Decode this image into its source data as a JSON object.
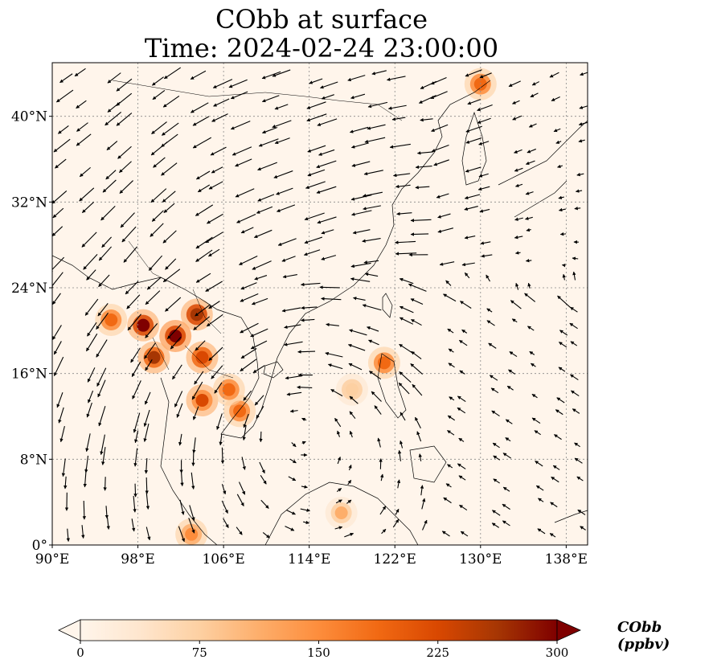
{
  "title": {
    "line1": "CObb at surface",
    "line2": "Time: 2024-02-24 23:00:00"
  },
  "map": {
    "lon_range": [
      90,
      140
    ],
    "lat_range": [
      0,
      45
    ],
    "x_ticks": [
      "90°E",
      "98°E",
      "106°E",
      "114°E",
      "122°E",
      "130°E",
      "138°E"
    ],
    "x_tick_values": [
      90,
      98,
      106,
      114,
      122,
      130,
      138
    ],
    "y_ticks": [
      "0°",
      "8°N",
      "16°N",
      "24°N",
      "32°N",
      "40°N"
    ],
    "y_tick_values": [
      0,
      8,
      16,
      24,
      32,
      40
    ],
    "gridlines": true,
    "background_color": "#fff5eb"
  },
  "colorbar": {
    "label": "CObb (ppbv)",
    "ticks": [
      "0",
      "75",
      "150",
      "225",
      "300"
    ],
    "tick_values": [
      0,
      75,
      150,
      225,
      300
    ],
    "range": [
      0,
      300
    ],
    "extend": "both",
    "colormap": [
      "#fff5eb",
      "#fee6ce",
      "#fdd0a2",
      "#fdae6b",
      "#fd8d3c",
      "#f16913",
      "#d94801",
      "#a63603",
      "#7f0000"
    ]
  },
  "hotspots": [
    {
      "lon": 101.5,
      "lat": 19.5,
      "value": 300
    },
    {
      "lon": 98.5,
      "lat": 20.5,
      "value": 290
    },
    {
      "lon": 103.5,
      "lat": 21.5,
      "value": 280
    },
    {
      "lon": 99.5,
      "lat": 17.5,
      "value": 260
    },
    {
      "lon": 104.0,
      "lat": 17.5,
      "value": 240
    },
    {
      "lon": 95.5,
      "lat": 21.0,
      "value": 200
    },
    {
      "lon": 104.0,
      "lat": 13.5,
      "value": 220
    },
    {
      "lon": 107.5,
      "lat": 12.5,
      "value": 200
    },
    {
      "lon": 106.5,
      "lat": 14.5,
      "value": 180
    },
    {
      "lon": 121.0,
      "lat": 17.0,
      "value": 180
    },
    {
      "lon": 130.0,
      "lat": 43.0,
      "value": 200
    },
    {
      "lon": 103.0,
      "lat": 1.0,
      "value": 150
    },
    {
      "lon": 117.0,
      "lat": 3.0,
      "value": 110
    },
    {
      "lon": 118.0,
      "lat": 14.5,
      "value": 90
    }
  ]
}
